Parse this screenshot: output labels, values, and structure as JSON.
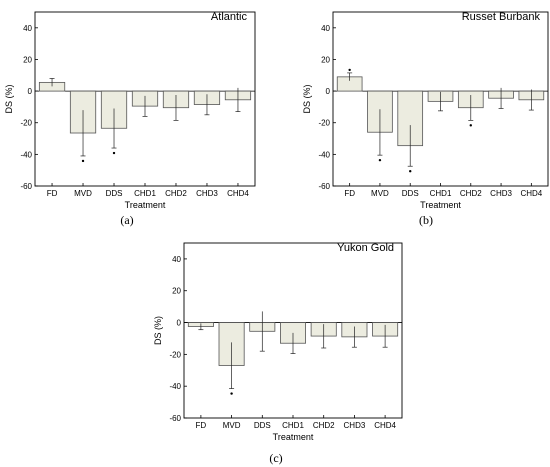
{
  "chart_data": [
    {
      "type": "bar",
      "title": "Atlantic",
      "caption": "(a)",
      "xlabel": "Treatment",
      "ylabel": "DS (%)",
      "ylim": [
        -60,
        50
      ],
      "yticks": [
        -60,
        -40,
        -20,
        0,
        20,
        40
      ],
      "categories": [
        "FD",
        "MVD",
        "DDS",
        "CHD1",
        "CHD2",
        "CHD3",
        "CHD4"
      ],
      "values": [
        5.5,
        -26.5,
        -23.5,
        -9.5,
        -10.5,
        -8.5,
        -5.5
      ],
      "errors": [
        2.5,
        14.5,
        12.5,
        6.5,
        8.0,
        6.5,
        7.5
      ],
      "significant": [
        false,
        true,
        true,
        false,
        false,
        false,
        false
      ]
    },
    {
      "type": "bar",
      "title": "Russet Burbank",
      "caption": "(b)",
      "xlabel": "Treatment",
      "ylabel": "DS (%)",
      "ylim": [
        -60,
        50
      ],
      "yticks": [
        -60,
        -40,
        -20,
        0,
        20,
        40
      ],
      "categories": [
        "FD",
        "MVD",
        "DDS",
        "CHD1",
        "CHD2",
        "CHD3",
        "CHD4"
      ],
      "values": [
        9.0,
        -26.0,
        -34.5,
        -6.5,
        -10.5,
        -4.5,
        -5.5
      ],
      "errors": [
        2.5,
        14.5,
        13.0,
        6.0,
        8.0,
        6.5,
        6.5
      ],
      "significant": [
        true,
        true,
        true,
        false,
        true,
        false,
        false
      ]
    },
    {
      "type": "bar",
      "title": "Yukon Gold",
      "caption": "(c)",
      "xlabel": "Treatment",
      "ylabel": "DS (%)",
      "ylim": [
        -60,
        50
      ],
      "yticks": [
        -60,
        -40,
        -20,
        0,
        20,
        40
      ],
      "categories": [
        "FD",
        "MVD",
        "DDS",
        "CHD1",
        "CHD2",
        "CHD3",
        "CHD4"
      ],
      "values": [
        -2.5,
        -27.0,
        -5.5,
        -13.0,
        -8.5,
        -9.0,
        -8.5
      ],
      "errors": [
        2.0,
        14.5,
        12.5,
        6.5,
        7.5,
        6.5,
        7.0
      ],
      "significant": [
        false,
        true,
        false,
        false,
        false,
        false,
        false
      ]
    }
  ]
}
